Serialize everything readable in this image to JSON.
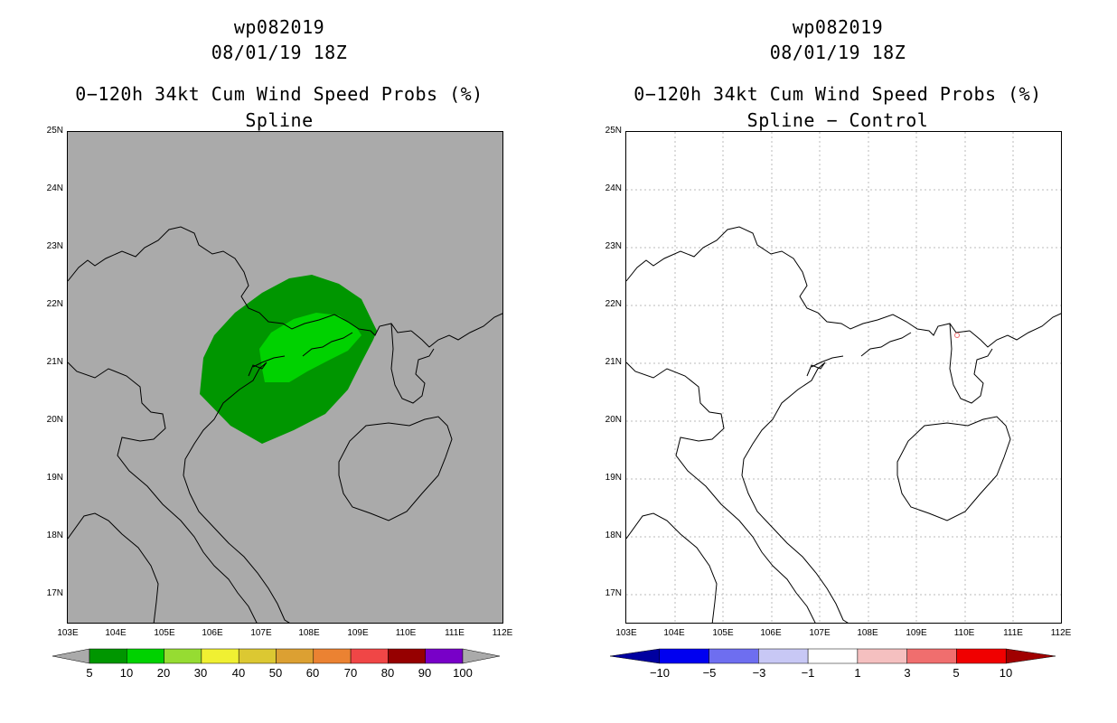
{
  "left_panel": {
    "title_id": "wp082019",
    "title_date": "08/01/19 18Z",
    "title_product": "0−120h 34kt Cum Wind Speed Probs (%)",
    "title_model": "Spline",
    "lat_labels": [
      "25N",
      "24N",
      "23N",
      "22N",
      "21N",
      "20N",
      "19N",
      "18N",
      "17N"
    ],
    "lon_labels": [
      "103E",
      "104E",
      "105E",
      "106E",
      "107E",
      "108E",
      "109E",
      "110E",
      "111E",
      "112E"
    ],
    "colorbar_labels": [
      "5",
      "10",
      "20",
      "30",
      "40",
      "50",
      "60",
      "70",
      "80",
      "90",
      "100"
    ],
    "colorbar_colors": [
      "#009600",
      "#00d200",
      "#96dc32",
      "#f0f032",
      "#dcc832",
      "#dca032",
      "#eb8232",
      "#f04646",
      "#960000",
      "#7800c8"
    ],
    "background_color": "#aaaaaa"
  },
  "right_panel": {
    "title_id": "wp082019",
    "title_date": "08/01/19 18Z",
    "title_product": "0−120h 34kt Cum Wind Speed Probs (%)",
    "title_model": "Spline − Control",
    "lat_labels": [
      "25N",
      "24N",
      "23N",
      "22N",
      "21N",
      "20N",
      "19N",
      "18N",
      "17N"
    ],
    "lon_labels": [
      "103E",
      "104E",
      "105E",
      "106E",
      "107E",
      "108E",
      "109E",
      "110E",
      "111E",
      "112E"
    ],
    "colorbar_labels": [
      "−10",
      "−5",
      "−3",
      "−1",
      "1",
      "3",
      "5",
      "10"
    ],
    "colorbar_colors": [
      "#0000a0",
      "#0000f0",
      "#6e6ef0",
      "#c8c8f5",
      "#ffffff",
      "#f5c0c0",
      "#f06e6e",
      "#f00000",
      "#a00000"
    ]
  }
}
